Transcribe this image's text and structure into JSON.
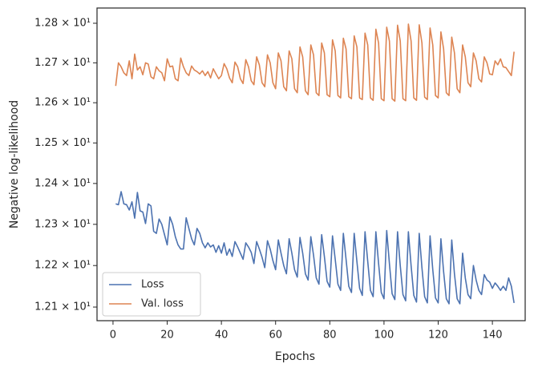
{
  "chart_data": {
    "type": "line",
    "xlabel": "Epochs",
    "ylabel": "Negative log-likelihood",
    "yscale": "log",
    "legend": "lower left",
    "xlim": [
      -5.9,
      152.1
    ],
    "ylim": [
      12.0674,
      12.8387
    ],
    "xticks": [
      0,
      20,
      40,
      60,
      80,
      100,
      120,
      140
    ],
    "yticks": [
      {
        "value": 12.1,
        "label": "1.21 × 10¹"
      },
      {
        "value": 12.2,
        "label": "1.22 × 10¹"
      },
      {
        "value": 12.3,
        "label": "1.23 × 10¹"
      },
      {
        "value": 12.4,
        "label": "1.24 × 10¹"
      },
      {
        "value": 12.5,
        "label": "1.25 × 10¹"
      },
      {
        "value": 12.6,
        "label": "1.26 × 10¹"
      },
      {
        "value": 12.7,
        "label": "1.27 × 10¹"
      },
      {
        "value": 12.8,
        "label": "1.28 × 10¹"
      }
    ],
    "x": [
      1,
      2,
      3,
      4,
      5,
      6,
      7,
      8,
      9,
      10,
      11,
      12,
      13,
      14,
      15,
      16,
      17,
      18,
      19,
      20,
      21,
      22,
      23,
      24,
      25,
      26,
      27,
      28,
      29,
      30,
      31,
      32,
      33,
      34,
      35,
      36,
      37,
      38,
      39,
      40,
      41,
      42,
      43,
      44,
      45,
      46,
      47,
      48,
      49,
      50,
      51,
      52,
      53,
      54,
      55,
      56,
      57,
      58,
      59,
      60,
      61,
      62,
      63,
      64,
      65,
      66,
      67,
      68,
      69,
      70,
      71,
      72,
      73,
      74,
      75,
      76,
      77,
      78,
      79,
      80,
      81,
      82,
      83,
      84,
      85,
      86,
      87,
      88,
      89,
      90,
      91,
      92,
      93,
      94,
      95,
      96,
      97,
      98,
      99,
      100,
      101,
      102,
      103,
      104,
      105,
      106,
      107,
      108,
      109,
      110,
      111,
      112,
      113,
      114,
      115,
      116,
      117,
      118,
      119,
      120,
      121,
      122,
      123,
      124,
      125,
      126,
      127,
      128,
      129,
      130,
      131,
      132,
      133,
      134,
      135,
      136,
      137,
      138,
      139,
      140,
      141,
      142,
      143,
      144,
      145,
      146,
      147,
      148
    ],
    "series": [
      {
        "name": "Loss",
        "color": "#4c72b0",
        "values": [
          12.35,
          12.348,
          12.38,
          12.35,
          12.348,
          12.335,
          12.355,
          12.315,
          12.378,
          12.333,
          12.33,
          12.302,
          12.35,
          12.345,
          12.283,
          12.278,
          12.313,
          12.3,
          12.275,
          12.25,
          12.318,
          12.3,
          12.27,
          12.25,
          12.24,
          12.24,
          12.316,
          12.29,
          12.265,
          12.25,
          12.29,
          12.278,
          12.255,
          12.243,
          12.255,
          12.245,
          12.25,
          12.232,
          12.248,
          12.23,
          12.255,
          12.225,
          12.24,
          12.222,
          12.258,
          12.245,
          12.23,
          12.215,
          12.255,
          12.245,
          12.232,
          12.205,
          12.258,
          12.24,
          12.22,
          12.195,
          12.26,
          12.24,
          12.212,
          12.19,
          12.262,
          12.23,
          12.2,
          12.18,
          12.265,
          12.23,
          12.19,
          12.172,
          12.268,
          12.23,
          12.18,
          12.165,
          12.27,
          12.225,
          12.17,
          12.155,
          12.275,
          12.222,
          12.162,
          12.148,
          12.272,
          12.215,
          12.155,
          12.14,
          12.278,
          12.215,
          12.15,
          12.135,
          12.278,
          12.21,
          12.145,
          12.128,
          12.282,
          12.21,
          12.14,
          12.125,
          12.282,
          12.205,
          12.135,
          12.12,
          12.285,
          12.205,
          12.132,
          12.118,
          12.282,
          12.2,
          12.13,
          12.115,
          12.282,
          12.2,
          12.128,
          12.112,
          12.278,
          12.195,
          12.125,
          12.11,
          12.272,
          12.19,
          12.122,
          12.11,
          12.265,
          12.185,
          12.12,
          12.108,
          12.262,
          12.18,
          12.12,
          12.108,
          12.23,
          12.17,
          12.13,
          12.12,
          12.2,
          12.165,
          12.14,
          12.13,
          12.178,
          12.165,
          12.16,
          12.145,
          12.158,
          12.15,
          12.14,
          12.15,
          12.14,
          12.17,
          12.15,
          12.11
        ]
      },
      {
        "name": "Val. loss",
        "color": "#dd8452",
        "values": [
          12.642,
          12.7,
          12.69,
          12.675,
          12.668,
          12.705,
          12.66,
          12.722,
          12.682,
          12.69,
          12.67,
          12.7,
          12.697,
          12.665,
          12.66,
          12.69,
          12.68,
          12.675,
          12.655,
          12.71,
          12.69,
          12.692,
          12.66,
          12.655,
          12.712,
          12.69,
          12.675,
          12.668,
          12.692,
          12.682,
          12.678,
          12.672,
          12.68,
          12.668,
          12.678,
          12.662,
          12.685,
          12.672,
          12.66,
          12.668,
          12.698,
          12.685,
          12.662,
          12.65,
          12.702,
          12.69,
          12.66,
          12.648,
          12.708,
          12.69,
          12.655,
          12.645,
          12.715,
          12.695,
          12.65,
          12.64,
          12.72,
          12.7,
          12.65,
          12.635,
          12.725,
          12.705,
          12.64,
          12.63,
          12.73,
          12.71,
          12.635,
          12.625,
          12.74,
          12.715,
          12.63,
          12.62,
          12.745,
          12.72,
          12.625,
          12.618,
          12.75,
          12.725,
          12.62,
          12.615,
          12.758,
          12.73,
          12.618,
          12.612,
          12.762,
          12.735,
          12.615,
          12.61,
          12.768,
          12.74,
          12.612,
          12.608,
          12.775,
          12.745,
          12.612,
          12.606,
          12.785,
          12.75,
          12.61,
          12.605,
          12.79,
          12.755,
          12.61,
          12.604,
          12.795,
          12.755,
          12.61,
          12.605,
          12.798,
          12.755,
          12.612,
          12.606,
          12.796,
          12.75,
          12.614,
          12.608,
          12.788,
          12.745,
          12.618,
          12.612,
          12.778,
          12.735,
          12.625,
          12.618,
          12.765,
          12.725,
          12.635,
          12.625,
          12.745,
          12.715,
          12.65,
          12.64,
          12.725,
          12.705,
          12.66,
          12.652,
          12.715,
          12.7,
          12.672,
          12.67,
          12.705,
          12.695,
          12.71,
          12.69,
          12.688,
          12.678,
          12.668,
          12.728
        ]
      }
    ]
  }
}
